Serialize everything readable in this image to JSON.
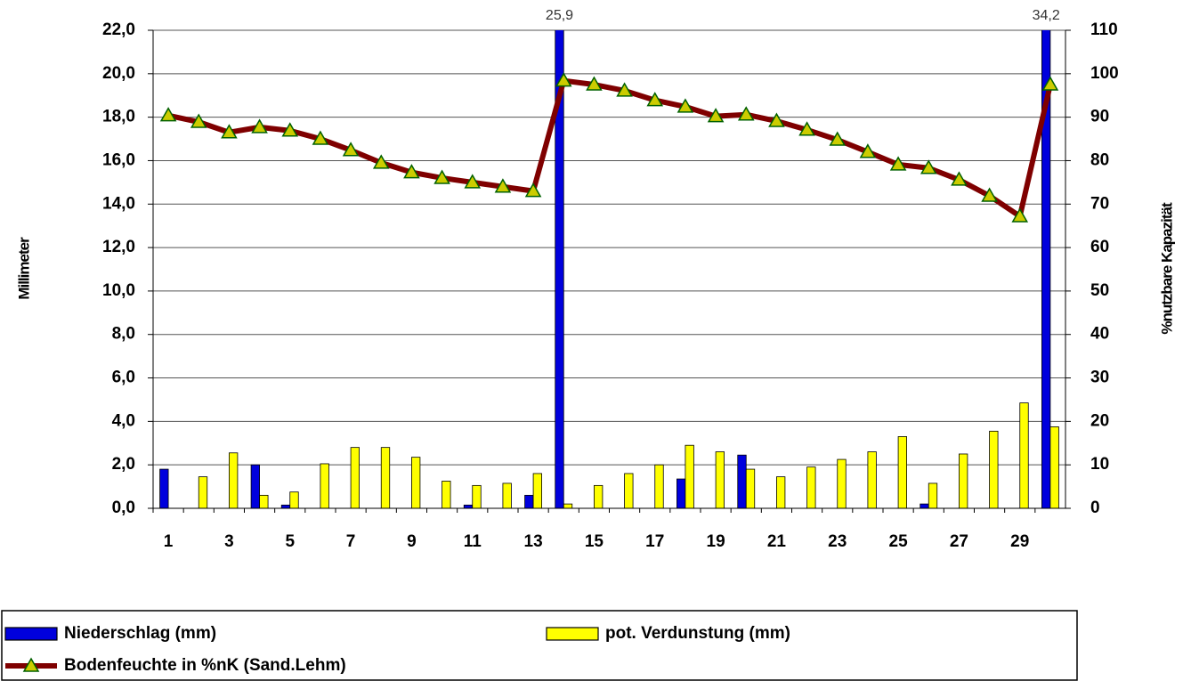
{
  "chart_data": {
    "type": "combo",
    "y_label": "Millimeter",
    "y2_label": "%nutzbare Kapazität",
    "categories": [
      "1",
      null,
      "3",
      null,
      "5",
      null,
      "7",
      null,
      "9",
      null,
      "11",
      null,
      "13",
      null,
      "15",
      null,
      "17",
      null,
      "19",
      null,
      "21",
      null,
      "23",
      null,
      "25",
      null,
      "27",
      null,
      "29",
      null
    ],
    "ylim": [
      0,
      22
    ],
    "yticks": [
      {
        "value": 0,
        "label": "0,0"
      },
      {
        "value": 2,
        "label": "2,0"
      },
      {
        "value": 4,
        "label": "4,0"
      },
      {
        "value": 6,
        "label": "6,0"
      },
      {
        "value": 8,
        "label": "8,0"
      },
      {
        "value": 10,
        "label": "10,0"
      },
      {
        "value": 12,
        "label": "12,0"
      },
      {
        "value": 14,
        "label": "14,0"
      },
      {
        "value": 16,
        "label": "16,0"
      },
      {
        "value": 18,
        "label": "18,0"
      },
      {
        "value": 20,
        "label": "20,0"
      },
      {
        "value": 22,
        "label": "22,0"
      }
    ],
    "y2lim": [
      0,
      110
    ],
    "y2ticks": [
      0,
      10,
      20,
      30,
      40,
      50,
      60,
      70,
      80,
      90,
      100,
      110
    ],
    "grid": true,
    "legend": "bottom",
    "series": [
      {
        "name": "Niederschlag (mm)",
        "type": "bar",
        "color": "#0000dd",
        "values": [
          1.8,
          0,
          0,
          2.0,
          0.15,
          0,
          0,
          0,
          0,
          0,
          0.15,
          0,
          0.6,
          25.9,
          0,
          0,
          0,
          1.35,
          0,
          2.45,
          0,
          0,
          0,
          0,
          0,
          0.2,
          0,
          0,
          0,
          34.2
        ],
        "value_labels": [
          null,
          null,
          null,
          null,
          null,
          null,
          null,
          null,
          null,
          null,
          null,
          null,
          null,
          "25,9",
          null,
          null,
          null,
          null,
          null,
          null,
          null,
          null,
          null,
          null,
          null,
          null,
          null,
          null,
          null,
          "34,2"
        ]
      },
      {
        "name": "pot. Verdunstung (mm)",
        "type": "bar",
        "color": "#ffff00",
        "values": [
          0,
          1.45,
          2.55,
          0.6,
          0.75,
          2.05,
          2.8,
          2.8,
          2.35,
          1.25,
          1.05,
          1.15,
          1.6,
          0.2,
          1.05,
          1.6,
          2.0,
          2.9,
          2.6,
          1.8,
          1.45,
          1.9,
          2.25,
          2.6,
          3.3,
          1.15,
          2.5,
          3.55,
          4.85,
          3.75
        ]
      },
      {
        "name": "Bodenfeuchte in %nK (Sand.Lehm)",
        "type": "line",
        "axis": "y2",
        "color": "#7f0000",
        "marker_color": "#cccc00",
        "values": [
          90.4,
          88.9,
          86.5,
          87.7,
          86.9,
          85.0,
          82.4,
          79.5,
          77.3,
          76.0,
          75.0,
          74.0,
          73.0,
          98.4,
          97.5,
          96.1,
          93.9,
          92.4,
          90.2,
          90.6,
          89.1,
          87.1,
          84.8,
          82.0,
          79.1,
          78.3,
          75.6,
          71.9,
          67.2,
          97.5
        ]
      }
    ]
  }
}
